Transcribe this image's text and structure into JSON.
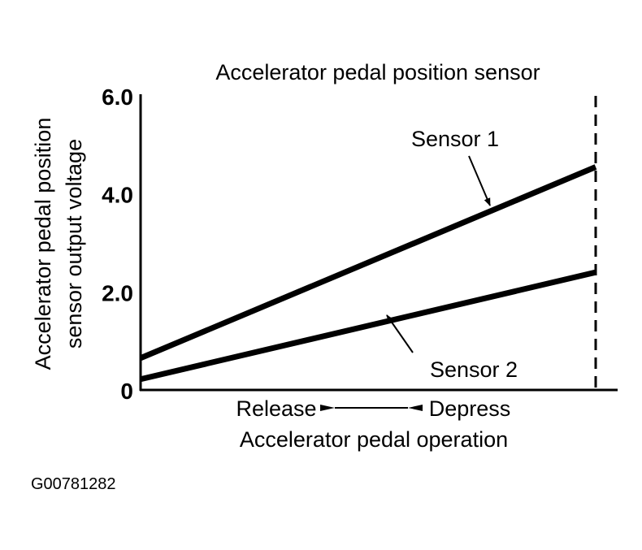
{
  "chart_data": {
    "type": "line",
    "title": "Accelerator pedal position sensor",
    "ylabel_lines": [
      "Accelerator pedal position",
      "sensor output voltage"
    ],
    "xlabel": "Accelerator pedal operation",
    "x_left_label": "Release",
    "x_right_label": "Depress",
    "ylim": [
      0,
      6.0
    ],
    "yticks": [
      "0",
      "2.0",
      "4.0",
      "6.0"
    ],
    "ytick_values": [
      0,
      2,
      4,
      6
    ],
    "xlim": [
      0,
      1
    ],
    "grid": false,
    "series": [
      {
        "name": "Sensor 1",
        "x": [
          0,
          1
        ],
        "y": [
          0.65,
          4.55
        ],
        "color": "#000000"
      },
      {
        "name": "Sensor 2",
        "x": [
          0,
          1
        ],
        "y": [
          0.22,
          2.4
        ],
        "color": "#000000"
      }
    ],
    "full_depress_marker": "dashed vertical line at full depress"
  },
  "figure_id": "G00781282"
}
